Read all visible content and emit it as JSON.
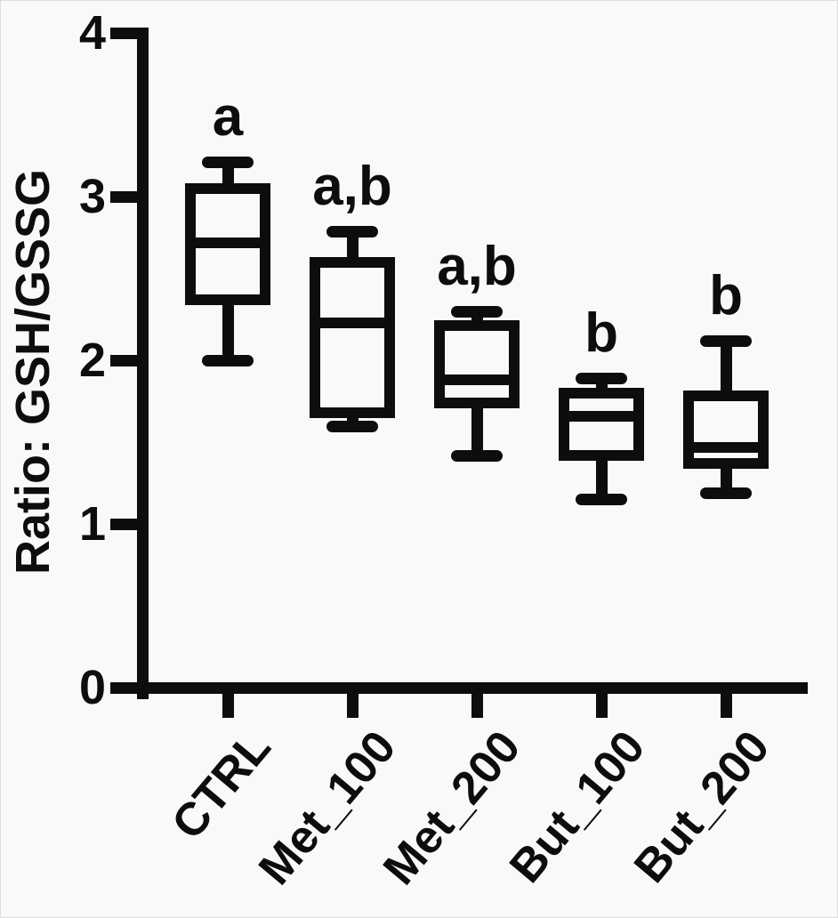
{
  "figure": {
    "background": "#f8f9fa",
    "ink_color": "#0d0d0d"
  },
  "chart_data": {
    "type": "box",
    "title": "",
    "xlabel": "",
    "ylabel": "Ratio: GSH/GSSG",
    "ylim": [
      0,
      4
    ],
    "yticks": [
      0,
      1,
      2,
      3,
      4
    ],
    "grid": false,
    "legend": "none",
    "box_style": "open-black-whisker-caps",
    "categories": [
      "CTRL",
      "Met_100",
      "Met_200",
      "But_100",
      "But_200"
    ],
    "series": [
      {
        "name": "CTRL",
        "whisker_low": 2.0,
        "q1": 2.37,
        "median": 2.72,
        "q3": 3.05,
        "whisker_high": 3.21,
        "annotation": "a"
      },
      {
        "name": "Met_100",
        "whisker_low": 1.6,
        "q1": 1.68,
        "median": 2.23,
        "q3": 2.6,
        "whisker_high": 2.79,
        "annotation": "a,b"
      },
      {
        "name": "Met_200",
        "whisker_low": 1.42,
        "q1": 1.74,
        "median": 1.88,
        "q3": 2.21,
        "whisker_high": 2.3,
        "annotation": "a,b"
      },
      {
        "name": "But_100",
        "whisker_low": 1.15,
        "q1": 1.42,
        "median": 1.66,
        "q3": 1.8,
        "whisker_high": 1.89,
        "annotation": "b"
      },
      {
        "name": "But_200",
        "whisker_low": 1.19,
        "q1": 1.37,
        "median": 1.47,
        "q3": 1.78,
        "whisker_high": 2.12,
        "annotation": "b"
      }
    ]
  }
}
